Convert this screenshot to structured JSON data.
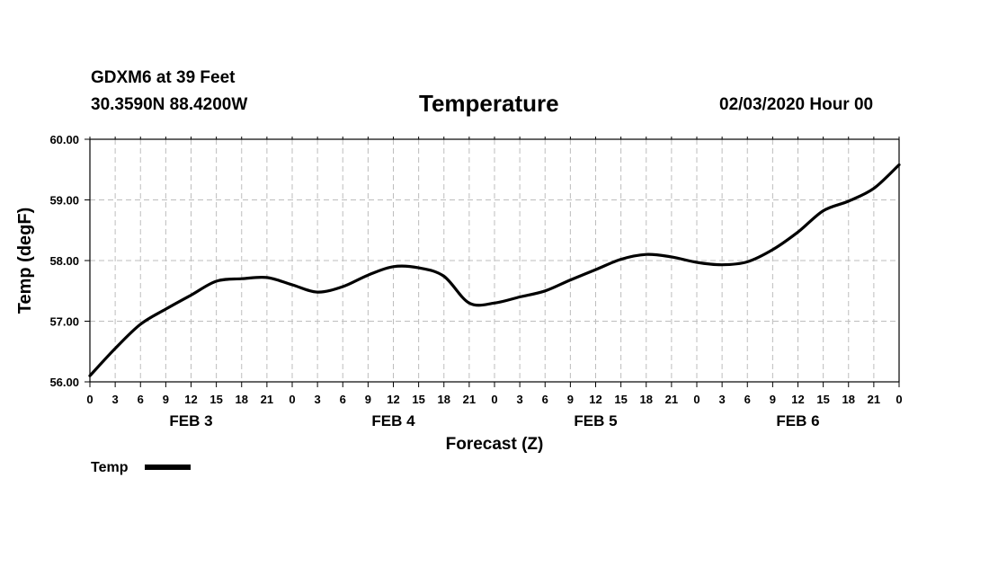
{
  "header": {
    "station": "GDXM6 at 39 Feet",
    "coords": "30.3590N 88.4200W",
    "title": "Temperature",
    "run_time": "02/03/2020 Hour 00"
  },
  "colors": {
    "line": "#000000",
    "grid": "#bdbdbd",
    "frame": "#000000"
  },
  "chart_data": {
    "type": "line",
    "title": "Temperature",
    "xlabel": "Forecast (Z)",
    "ylabel": "Temp (degF)",
    "xlim": [
      0,
      96
    ],
    "ylim": [
      56.0,
      60.0
    ],
    "yticks": [
      56.0,
      57.0,
      58.0,
      59.0,
      60.0
    ],
    "ytick_labels": [
      "56.00",
      "57.00",
      "58.00",
      "59.00",
      "60.00"
    ],
    "xtick_hours": [
      0,
      3,
      6,
      9,
      12,
      15,
      18,
      21,
      24,
      27,
      30,
      33,
      36,
      39,
      42,
      45,
      48,
      51,
      54,
      57,
      60,
      63,
      66,
      69,
      72,
      75,
      78,
      81,
      84,
      87,
      90,
      93,
      96
    ],
    "xtick_labels": [
      "0",
      "3",
      "6",
      "9",
      "12",
      "15",
      "18",
      "21",
      "0",
      "3",
      "6",
      "9",
      "12",
      "15",
      "18",
      "21",
      "0",
      "3",
      "6",
      "9",
      "12",
      "15",
      "18",
      "21",
      "0",
      "3",
      "6",
      "9",
      "12",
      "15",
      "18",
      "21",
      "0"
    ],
    "day_labels": [
      {
        "text": "FEB 3",
        "hour": 12
      },
      {
        "text": "FEB 4",
        "hour": 36
      },
      {
        "text": "FEB 5",
        "hour": 60
      },
      {
        "text": "FEB 6",
        "hour": 84
      }
    ],
    "grid": true,
    "legend": {
      "position": "bottom-left",
      "entries": [
        {
          "label": "Temp"
        }
      ]
    },
    "series": [
      {
        "name": "Temp",
        "x": [
          0,
          3,
          6,
          9,
          12,
          15,
          18,
          21,
          24,
          27,
          30,
          33,
          36,
          39,
          42,
          45,
          48,
          51,
          54,
          57,
          60,
          63,
          66,
          69,
          72,
          75,
          78,
          81,
          84,
          87,
          90,
          93,
          96
        ],
        "values": [
          56.1,
          56.55,
          56.95,
          57.2,
          57.43,
          57.66,
          57.7,
          57.72,
          57.6,
          57.48,
          57.57,
          57.76,
          57.9,
          57.88,
          57.74,
          57.3,
          57.3,
          57.4,
          57.5,
          57.68,
          57.85,
          58.02,
          58.1,
          58.06,
          57.97,
          57.93,
          57.98,
          58.18,
          58.47,
          58.82,
          58.98,
          59.19,
          59.58
        ]
      }
    ]
  }
}
